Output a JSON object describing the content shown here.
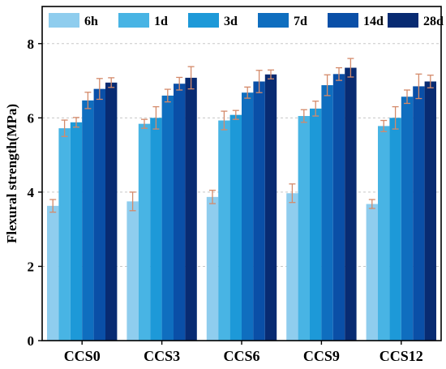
{
  "chart_data": {
    "type": "bar",
    "title": "",
    "xlabel": "",
    "ylabel": "Flexural strength(MPa)",
    "ylim": [
      0,
      9
    ],
    "yticks": [
      0,
      2,
      4,
      6,
      8
    ],
    "grid": true,
    "legend_position": "top",
    "categories": [
      "CCS0",
      "CCS3",
      "CCS6",
      "CCS9",
      "CCS12"
    ],
    "error_bar_color": "#d48a6a",
    "series": [
      {
        "name": "6h",
        "color": "#8fcdee",
        "values": [
          3.63,
          3.75,
          3.87,
          3.97,
          3.68
        ],
        "errors": [
          0.17,
          0.25,
          0.18,
          0.25,
          0.12
        ]
      },
      {
        "name": "1d",
        "color": "#48b4e4",
        "values": [
          5.72,
          5.84,
          5.93,
          6.05,
          5.78
        ],
        "errors": [
          0.22,
          0.12,
          0.25,
          0.17,
          0.15
        ]
      },
      {
        "name": "3d",
        "color": "#1d99d8",
        "values": [
          5.88,
          6.0,
          6.08,
          6.25,
          6.0
        ],
        "errors": [
          0.13,
          0.3,
          0.12,
          0.2,
          0.3
        ]
      },
      {
        "name": "7d",
        "color": "#0f6ebf",
        "values": [
          6.47,
          6.6,
          6.68,
          6.88,
          6.57
        ],
        "errors": [
          0.22,
          0.17,
          0.15,
          0.28,
          0.18
        ]
      },
      {
        "name": "14d",
        "color": "#0a4fa7",
        "values": [
          6.78,
          6.92,
          6.98,
          7.18,
          6.85
        ],
        "errors": [
          0.28,
          0.17,
          0.3,
          0.17,
          0.33
        ]
      },
      {
        "name": "28d",
        "color": "#082b72",
        "values": [
          6.95,
          7.08,
          7.17,
          7.35,
          6.98
        ],
        "errors": [
          0.13,
          0.3,
          0.12,
          0.25,
          0.17
        ]
      }
    ]
  }
}
